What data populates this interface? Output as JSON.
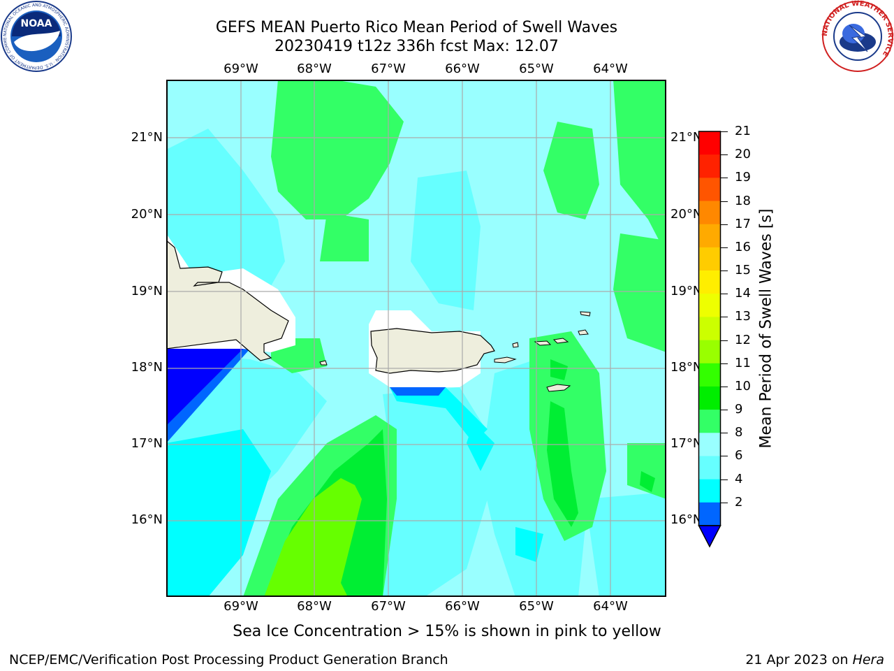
{
  "header": {
    "title_line1": "GEFS MEAN Puerto Rico Mean Period of Swell Waves",
    "title_line2": "20230419 t12z 336h fcst   Max: 12.07"
  },
  "logos": {
    "left": {
      "icon": "noaa-logo",
      "text": "NOAA",
      "ring_text": "NATIONAL OCEANIC AND ATMOSPHERIC ADMINISTRATION · U.S. DEPARTMENT OF COMMERCE"
    },
    "right": {
      "icon": "nws-logo",
      "ring_text": "NATIONAL WEATHER SERVICE"
    }
  },
  "map": {
    "lon_labels": [
      "69°W",
      "68°W",
      "67°W",
      "66°W",
      "65°W",
      "64°W"
    ],
    "lat_labels": [
      "21°N",
      "20°N",
      "19°N",
      "18°N",
      "17°N",
      "16°N"
    ],
    "field_colors": {
      "water_base": "#99ffff",
      "band_4_6": "#00ffff",
      "band_6_8": "#66ffff",
      "band_9_10": "#33ff66",
      "band_10_11": "#00ee33",
      "band_11_12": "#66ff00",
      "band_2_4": "#0066ff",
      "below_2": "#0000ff",
      "land": "#eeeedd",
      "no_data": "#ffffff"
    }
  },
  "colorbar": {
    "label": "Mean Period of Swell Waves [s]",
    "ticks": [
      "21",
      "20",
      "19",
      "18",
      "17",
      "16",
      "15",
      "14",
      "13",
      "12",
      "11",
      "10",
      "9",
      "8",
      "6",
      "4",
      "2"
    ],
    "colors": [
      "#ff0000",
      "#ff2200",
      "#ff5500",
      "#ff8800",
      "#ffaa00",
      "#ffcc00",
      "#ffee00",
      "#eeff00",
      "#ccff00",
      "#99ff00",
      "#33ff00",
      "#00ee00",
      "#33ff66",
      "#99ffff",
      "#66ffff",
      "#00ffff",
      "#0066ff"
    ],
    "under_color": "#0000ff"
  },
  "subtitle": "Sea Ice Concentration > 15% is shown in pink to yellow",
  "footer": {
    "left": "NCEP/EMC/Verification Post Processing Product Generation Branch",
    "right_prefix": "21 Apr 2023 on ",
    "right_host": "Hera"
  }
}
